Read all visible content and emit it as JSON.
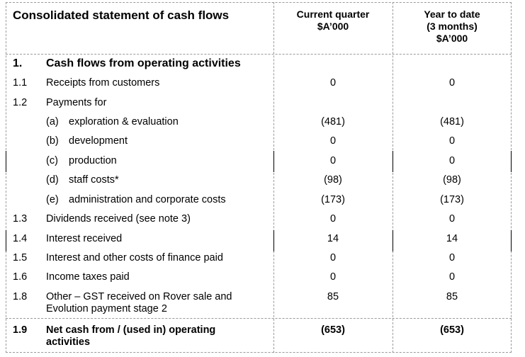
{
  "header": {
    "title": "Consolidated statement of cash flows",
    "col1_line1": "Current quarter",
    "col1_line2": "$A’000",
    "col2_line1": "Year to date",
    "col2_line2": "(3 months)",
    "col2_line3": "$A’000"
  },
  "section": {
    "number": "1.",
    "title": "Cash flows from operating activities"
  },
  "rows": [
    {
      "num": "1.1",
      "label": "Receipts from customers",
      "cq": "0",
      "ytd": "0"
    },
    {
      "num": "1.2",
      "label": "Payments for",
      "cq": "",
      "ytd": ""
    },
    {
      "num": "",
      "sub": "(a)",
      "label": "exploration & evaluation",
      "cq": "(481)",
      "ytd": "(481)"
    },
    {
      "num": "",
      "sub": "(b)",
      "label": "development",
      "cq": "0",
      "ytd": "0"
    },
    {
      "num": "",
      "sub": "(c)",
      "label": "production",
      "cq": "0",
      "ytd": "0"
    },
    {
      "num": "",
      "sub": "(d)",
      "label": "staff costs*",
      "cq": "(98)",
      "ytd": "(98)"
    },
    {
      "num": "",
      "sub": "(e)",
      "label": "administration and corporate costs",
      "cq": "(173)",
      "ytd": "(173)"
    },
    {
      "num": "1.3",
      "label": "Dividends received (see note 3)",
      "cq": "0",
      "ytd": "0"
    },
    {
      "num": "1.4",
      "label": "Interest received",
      "cq": "14",
      "ytd": "14"
    },
    {
      "num": "1.5",
      "label": "Interest and other costs of finance paid",
      "cq": "0",
      "ytd": "0"
    },
    {
      "num": "1.6",
      "label": "Income taxes paid",
      "cq": "0",
      "ytd": "0"
    },
    {
      "num": "1.8",
      "label": "Other – GST received on Rover sale and",
      "label2": "Evolution payment stage 2",
      "cq": "85",
      "ytd": "85"
    }
  ],
  "total": {
    "num": "1.9",
    "label": "Net cash from / (used in) operating",
    "label2": "activities",
    "cq": "(653)",
    "ytd": "(653)"
  }
}
